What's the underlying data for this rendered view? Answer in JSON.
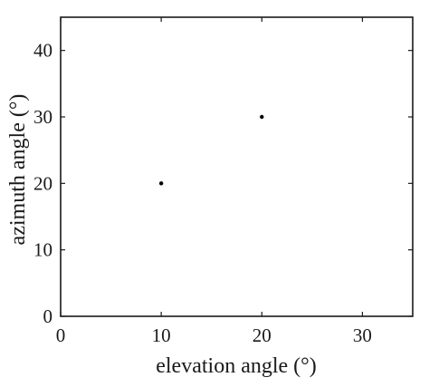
{
  "chart_data": {
    "type": "scatter",
    "title": "",
    "xlabel": "elevation angle (°)",
    "ylabel": "azimuth angle (°)",
    "xlim": [
      0,
      35
    ],
    "ylim": [
      0,
      45
    ],
    "x_ticks": [
      0,
      10,
      20,
      30
    ],
    "y_ticks": [
      0,
      10,
      20,
      30,
      40
    ],
    "grid": false,
    "box": true,
    "series": [
      {
        "points": [
          {
            "x": 10,
            "y": 20
          },
          {
            "x": 20,
            "y": 30
          }
        ],
        "color": "#000000"
      }
    ]
  }
}
